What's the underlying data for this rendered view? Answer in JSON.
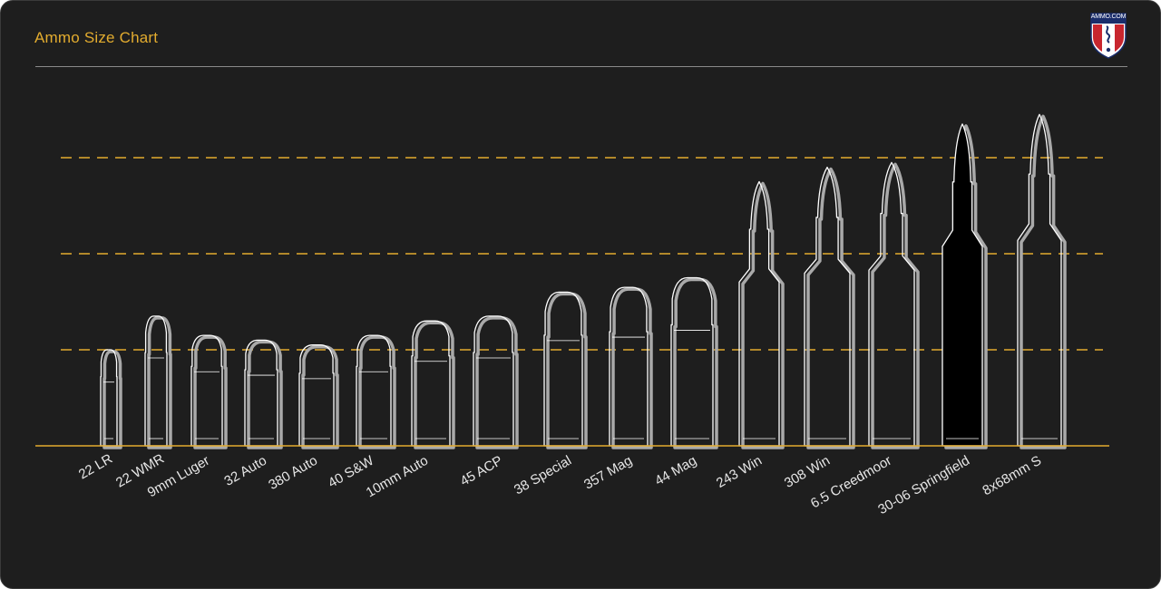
{
  "header": {
    "title": "Ammo Size Chart",
    "logo_text": "AMMO.COM"
  },
  "colors": {
    "background": "#1e1e1e",
    "accent": "#e3ac2f",
    "outline": "#ffffff",
    "shadow": "#a9a9a9",
    "highlight_fill": "#000000"
  },
  "chart_data": {
    "type": "bar",
    "title": "Ammo Size Chart",
    "xlabel": "",
    "ylabel": "",
    "grid": true,
    "categories": [
      "22 LR",
      "22 WMR",
      "9mm Luger",
      "32 Auto",
      "380 Auto",
      "40 S&W",
      "10mm Auto",
      "45 ACP",
      "38 Special",
      "357 Mag",
      "44 Mag",
      "243 Win",
      "308 Win",
      "6.5 Creedmoor",
      "30-06 Springfield",
      "8x68mm S"
    ],
    "values": [
      1.0,
      1.35,
      1.15,
      1.1,
      1.05,
      1.15,
      1.3,
      1.35,
      1.6,
      1.65,
      1.75,
      2.75,
      2.9,
      2.95,
      3.35,
      3.45
    ],
    "highlight": "30-06 Springfield"
  }
}
